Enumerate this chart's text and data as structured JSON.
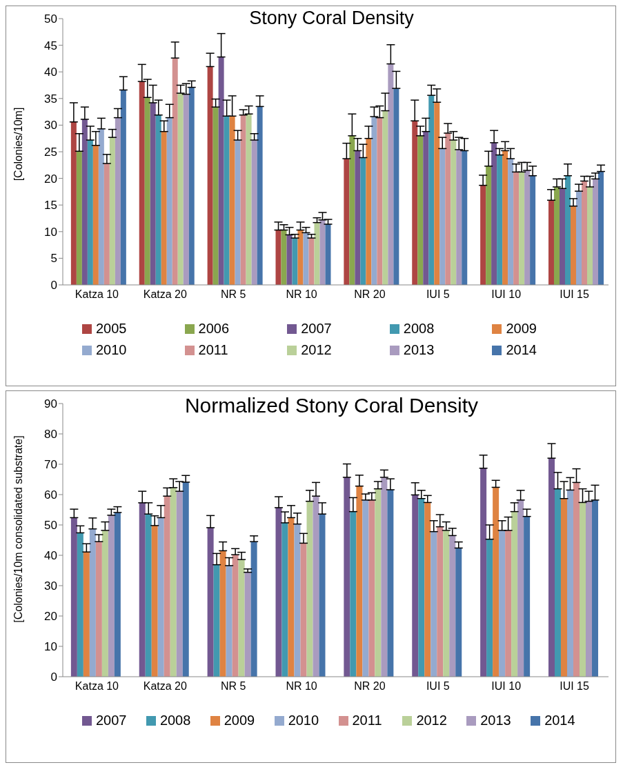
{
  "chart_data": [
    {
      "type": "bar",
      "title": "Stony Coral Density",
      "ylabel": "[Colonies/10m]",
      "categories": [
        "Katza 10",
        "Katza 20",
        "NR 5",
        "NR 10",
        "NR 20",
        "IUI 5",
        "IUI 10",
        "IUI 15"
      ],
      "ylim": [
        0,
        50
      ],
      "yticks": [
        0,
        5,
        10,
        15,
        20,
        25,
        30,
        35,
        40,
        45,
        50
      ],
      "grid": false,
      "legend": "bottom",
      "series": [
        {
          "name": "2005",
          "color": "#ae4543",
          "values": [
            30.6,
            38.2,
            41.0,
            10.3,
            23.7,
            30.8,
            18.7,
            15.9
          ],
          "errors": [
            [
              30.6,
              34.2
            ],
            [
              38.2,
              41.4
            ],
            [
              41.0,
              43.5
            ],
            [
              10.3,
              11.8
            ],
            [
              23.7,
              26.6
            ],
            [
              30.8,
              34.7
            ],
            [
              18.7,
              20.6
            ],
            [
              15.9,
              17.9
            ]
          ]
        },
        {
          "name": "2006",
          "color": "#8aa74f",
          "values": [
            25.1,
            35.2,
            33.4,
            10.3,
            28.0,
            28.0,
            22.3,
            18.4
          ],
          "errors": [
            [
              25.1,
              28.4
            ],
            [
              35.2,
              38.6
            ],
            [
              33.4,
              34.9
            ],
            [
              10.3,
              11.3
            ],
            [
              28.0,
              32.1
            ],
            [
              28.0,
              29.8
            ],
            [
              22.3,
              25.1
            ],
            [
              18.4,
              19.9
            ]
          ]
        },
        {
          "name": "2007",
          "color": "#725891",
          "values": [
            31.1,
            34.2,
            42.8,
            9.4,
            25.2,
            28.8,
            26.7,
            18.1
          ],
          "errors": [
            [
              31.1,
              33.4
            ],
            [
              34.2,
              37.5
            ],
            [
              42.8,
              47.2
            ],
            [
              9.4,
              10.8
            ],
            [
              25.2,
              27.5
            ],
            [
              28.8,
              31.3
            ],
            [
              26.7,
              29.0
            ],
            [
              18.1,
              19.9
            ]
          ]
        },
        {
          "name": "2008",
          "color": "#4299b0",
          "values": [
            27.2,
            31.9,
            31.7,
            8.8,
            23.9,
            35.6,
            24.4,
            20.5
          ],
          "errors": [
            [
              27.2,
              29.8
            ],
            [
              31.9,
              34.7
            ],
            [
              31.7,
              34.7
            ],
            [
              8.8,
              9.5
            ],
            [
              23.9,
              26.4
            ],
            [
              35.6,
              37.5
            ],
            [
              24.4,
              25.6
            ],
            [
              20.5,
              22.7
            ]
          ]
        },
        {
          "name": "2009",
          "color": "#df8342",
          "values": [
            26.2,
            28.8,
            31.7,
            10.3,
            27.5,
            34.3,
            25.2,
            14.8
          ],
          "errors": [
            [
              26.2,
              28.8
            ],
            [
              28.8,
              30.8
            ],
            [
              31.7,
              35.5
            ],
            [
              10.3,
              11.8
            ],
            [
              27.5,
              29.8
            ],
            [
              34.3,
              36.8
            ],
            [
              25.2,
              26.9
            ],
            [
              14.8,
              16.2
            ]
          ]
        },
        {
          "name": "2010",
          "color": "#94aacf",
          "values": [
            29.3,
            31.4,
            27.2,
            9.8,
            31.6,
            25.6,
            23.7,
            17.6
          ],
          "errors": [
            [
              29.3,
              31.3
            ],
            [
              31.4,
              33.9
            ],
            [
              27.2,
              29.0
            ],
            [
              9.8,
              10.8
            ],
            [
              31.6,
              33.4
            ],
            [
              25.6,
              27.7
            ],
            [
              23.7,
              25.6
            ],
            [
              17.6,
              18.9
            ]
          ]
        },
        {
          "name": "2011",
          "color": "#d39190",
          "values": [
            22.8,
            42.6,
            31.9,
            8.8,
            31.4,
            28.5,
            21.2,
            19.5
          ],
          "errors": [
            [
              22.8,
              24.5
            ],
            [
              42.6,
              45.6
            ],
            [
              31.9,
              32.9
            ],
            [
              8.8,
              9.5
            ],
            [
              31.4,
              33.6
            ],
            [
              28.5,
              30.3
            ],
            [
              21.2,
              22.7
            ],
            [
              19.5,
              20.4
            ]
          ]
        },
        {
          "name": "2012",
          "color": "#bad099",
          "values": [
            27.7,
            36.0,
            32.1,
            11.7,
            32.7,
            27.2,
            21.2,
            18.4
          ],
          "errors": [
            [
              27.7,
              29.2
            ],
            [
              36.0,
              37.5
            ],
            [
              32.1,
              33.6
            ],
            [
              11.7,
              12.6
            ],
            [
              32.7,
              36.0
            ],
            [
              27.2,
              28.8
            ],
            [
              21.2,
              23.0
            ],
            [
              18.4,
              20.4
            ]
          ]
        },
        {
          "name": "2013",
          "color": "#a99bbf",
          "values": [
            31.4,
            35.8,
            27.2,
            12.2,
            41.5,
            25.4,
            21.5,
            19.9
          ],
          "errors": [
            [
              31.4,
              33.1
            ],
            [
              35.8,
              37.8
            ],
            [
              27.2,
              28.4
            ],
            [
              12.2,
              13.6
            ],
            [
              41.5,
              45.1
            ],
            [
              25.4,
              27.7
            ],
            [
              21.5,
              23.0
            ],
            [
              19.9,
              21.0
            ]
          ]
        },
        {
          "name": "2014",
          "color": "#4674aa",
          "values": [
            36.6,
            37.1,
            33.5,
            11.4,
            36.9,
            25.2,
            20.5,
            21.3
          ],
          "errors": [
            [
              36.6,
              39.1
            ],
            [
              37.1,
              38.3
            ],
            [
              33.5,
              35.5
            ],
            [
              11.4,
              12.3
            ],
            [
              36.9,
              40.1
            ],
            [
              25.2,
              27.5
            ],
            [
              20.5,
              22.3
            ],
            [
              21.3,
              22.5
            ]
          ]
        }
      ]
    },
    {
      "type": "bar",
      "title": "Normalized Stony Coral Density",
      "ylabel": "[Colonies/10m consolidated substrate]",
      "categories": [
        "Katza 10",
        "Katza 20",
        "NR 5",
        "NR 10",
        "NR 20",
        "IUI 5",
        "IUI 10",
        "IUI 15"
      ],
      "ylim": [
        0,
        90
      ],
      "yticks": [
        0,
        10,
        20,
        30,
        40,
        50,
        60,
        70,
        80,
        90
      ],
      "grid": false,
      "legend": "bottom",
      "series": [
        {
          "name": "2007",
          "color": "#725891",
          "values": [
            52.4,
            57.3,
            49.1,
            55.7,
            65.7,
            59.9,
            68.7,
            72.0
          ],
          "errors": [
            [
              52.4,
              55.2
            ],
            [
              57.3,
              61.1
            ],
            [
              49.1,
              53.1
            ],
            [
              55.7,
              59.3
            ],
            [
              65.7,
              70.1
            ],
            [
              59.9,
              63.9
            ],
            [
              68.7,
              73.0
            ],
            [
              72.0,
              76.8
            ]
          ]
        },
        {
          "name": "2008",
          "color": "#4299b0",
          "values": [
            47.4,
            53.6,
            36.9,
            50.7,
            54.4,
            58.7,
            45.3,
            61.9
          ],
          "errors": [
            [
              47.4,
              49.7
            ],
            [
              53.6,
              57.3
            ],
            [
              36.9,
              40.6
            ],
            [
              50.7,
              54.3
            ],
            [
              54.4,
              59.0
            ],
            [
              58.7,
              61.4
            ],
            [
              45.3,
              50.0
            ],
            [
              61.9,
              67.3
            ]
          ]
        },
        {
          "name": "2009",
          "color": "#df8342",
          "values": [
            41.1,
            49.8,
            41.5,
            52.4,
            62.8,
            57.4,
            62.4,
            58.7
          ],
          "errors": [
            [
              41.1,
              43.8
            ],
            [
              49.8,
              53.0
            ],
            [
              41.5,
              44.4
            ],
            [
              52.4,
              56.4
            ],
            [
              62.8,
              66.4
            ],
            [
              57.4,
              59.7
            ],
            [
              62.4,
              64.7
            ],
            [
              58.7,
              64.3
            ]
          ]
        },
        {
          "name": "2010",
          "color": "#94aacf",
          "values": [
            48.7,
            52.4,
            36.6,
            50.3,
            58.2,
            47.8,
            48.2,
            61.5
          ],
          "errors": [
            [
              48.7,
              52.3
            ],
            [
              52.4,
              56.4
            ],
            [
              36.6,
              39.2
            ],
            [
              50.3,
              53.9
            ],
            [
              58.2,
              60.2
            ],
            [
              47.8,
              51.4
            ],
            [
              48.2,
              51.4
            ],
            [
              61.5,
              65.6
            ]
          ]
        },
        {
          "name": "2011",
          "color": "#d39190",
          "values": [
            44.5,
            59.5,
            40.2,
            44.0,
            58.2,
            49.4,
            48.2,
            64.0
          ],
          "errors": [
            [
              44.5,
              46.8
            ],
            [
              59.5,
              62.2
            ],
            [
              40.2,
              42.2
            ],
            [
              44.0,
              47.2
            ],
            [
              58.2,
              60.6
            ],
            [
              49.4,
              53.4
            ],
            [
              48.2,
              52.6
            ],
            [
              64.0,
              68.5
            ]
          ]
        },
        {
          "name": "2012",
          "color": "#bad099",
          "values": [
            48.2,
            62.3,
            38.6,
            57.8,
            61.9,
            48.2,
            54.4,
            57.4
          ],
          "errors": [
            [
              48.2,
              51.0
            ],
            [
              62.3,
              65.2
            ],
            [
              38.6,
              41.0
            ],
            [
              57.8,
              61.4
            ],
            [
              61.9,
              64.3
            ],
            [
              48.2,
              51.0
            ],
            [
              54.4,
              57.3
            ],
            [
              57.4,
              61.9
            ]
          ]
        },
        {
          "name": "2013",
          "color": "#a99bbf",
          "values": [
            53.2,
            61.1,
            34.4,
            59.5,
            65.7,
            46.5,
            58.2,
            57.8
          ],
          "errors": [
            [
              53.2,
              55.2
            ],
            [
              61.1,
              64.3
            ],
            [
              34.4,
              35.5
            ],
            [
              59.5,
              64.0
            ],
            [
              65.7,
              68.1
            ],
            [
              46.5,
              48.9
            ],
            [
              58.2,
              61.4
            ],
            [
              57.8,
              61.1
            ]
          ]
        },
        {
          "name": "2014",
          "color": "#4674aa",
          "values": [
            54.1,
            64.1,
            44.5,
            53.6,
            61.6,
            42.4,
            52.8,
            58.2
          ],
          "errors": [
            [
              54.1,
              56.0
            ],
            [
              64.1,
              66.3
            ],
            [
              44.5,
              46.4
            ],
            [
              53.6,
              57.3
            ],
            [
              61.6,
              65.2
            ],
            [
              42.4,
              44.4
            ],
            [
              52.8,
              55.2
            ],
            [
              58.2,
              63.1
            ]
          ]
        }
      ]
    }
  ]
}
